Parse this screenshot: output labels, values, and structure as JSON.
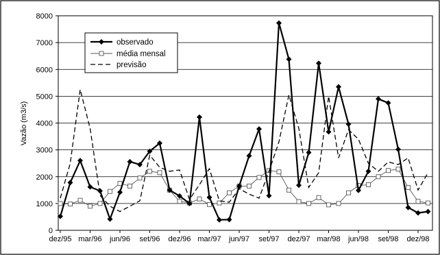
{
  "chart_data": {
    "type": "line",
    "title": "",
    "xlabel": "",
    "ylabel": "Vazão (m3/s)",
    "ylim": [
      0,
      8000
    ],
    "yticks": [
      0,
      1000,
      2000,
      3000,
      4000,
      5000,
      6000,
      7000,
      8000
    ],
    "xtick_labels": [
      "dez/95",
      "mar/96",
      "jun/96",
      "set/96",
      "dez/96",
      "mar/97",
      "jun/97",
      "set/97",
      "dez/97",
      "mar/98",
      "jun/98",
      "set/98",
      "dez/98"
    ],
    "grid": "horizontal",
    "legend_position": "top-left",
    "x": [
      "dez/95",
      "jan/96",
      "fev/96",
      "mar/96",
      "abr/96",
      "mai/96",
      "jun/96",
      "jul/96",
      "ago/96",
      "set/96",
      "out/96",
      "nov/96",
      "dez/96",
      "jan/97",
      "fev/97",
      "mar/97",
      "abr/97",
      "mai/97",
      "jun/97",
      "jul/97",
      "ago/97",
      "set/97",
      "out/97",
      "nov/97",
      "dez/97",
      "jan/98",
      "fev/98",
      "mar/98",
      "abr/98",
      "mai/98",
      "jun/98",
      "jul/98",
      "ago/98",
      "set/98",
      "out/98",
      "nov/98",
      "dez/98",
      "jan/99"
    ],
    "series": [
      {
        "name": "observado",
        "style": "solid-bold-diamond",
        "color": "#000000",
        "values": [
          520,
          1780,
          2600,
          1620,
          1470,
          420,
          1420,
          2560,
          2450,
          2950,
          3250,
          1500,
          1280,
          1000,
          4220,
          1230,
          390,
          400,
          1650,
          2780,
          3780,
          1290,
          7730,
          6380,
          1680,
          2900,
          6230,
          3670,
          5350,
          3960,
          1490,
          2200,
          4900,
          4750,
          3020,
          850,
          650,
          700
        ]
      },
      {
        "name": "média mensal",
        "style": "thin-square",
        "color": "#555555",
        "values": [
          1000,
          980,
          1120,
          900,
          1000,
          1450,
          1750,
          1650,
          1950,
          2200,
          2150,
          1500,
          1080,
          1020,
          1170,
          960,
          1020,
          1400,
          1650,
          1650,
          1970,
          2230,
          2180,
          1500,
          1070,
          1000,
          1220,
          950,
          1000,
          1400,
          1670,
          1700,
          2000,
          2230,
          2280,
          1600,
          1080,
          1020
        ]
      },
      {
        "name": "previsão",
        "style": "dashed",
        "color": "#000000",
        "values": [
          1200,
          2500,
          5250,
          3800,
          1300,
          900,
          700,
          900,
          1100,
          2800,
          2350,
          2200,
          2250,
          1150,
          1700,
          2300,
          1100,
          1050,
          1550,
          1350,
          1200,
          2200,
          3300,
          5050,
          3800,
          1600,
          2150,
          5000,
          2700,
          3750,
          3400,
          2500,
          2200,
          2550,
          2450,
          2700,
          1500,
          2150
        ]
      }
    ]
  }
}
